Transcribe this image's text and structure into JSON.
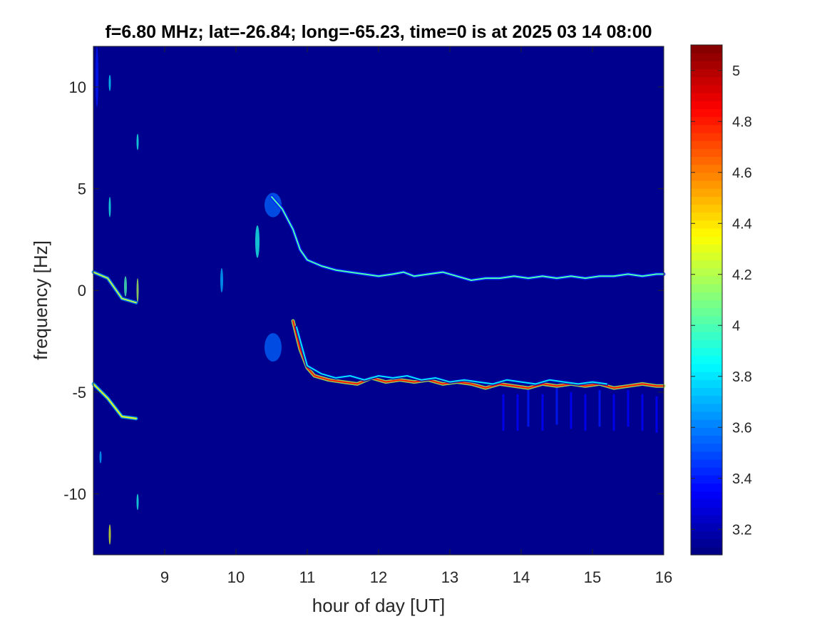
{
  "chart_data": {
    "type": "heatmap",
    "title": "f=6.80 MHz;  lat=-26.84; long=-65.23, time=0 is at 2025 03 14 08:00",
    "xlabel": "hour of day [UT]",
    "ylabel": "frequency [Hz]",
    "xlim": [
      8.0,
      16.0
    ],
    "ylim": [
      -13.0,
      12.0
    ],
    "x_ticks": [
      9,
      10,
      11,
      12,
      13,
      14,
      15,
      16
    ],
    "x_tick_labels": [
      "9",
      "10",
      "11",
      "12",
      "13",
      "14",
      "15",
      "16"
    ],
    "y_ticks": [
      10,
      5,
      0,
      -5,
      -10
    ],
    "y_tick_labels": [
      "10",
      "5",
      "0",
      "-5",
      "-10"
    ],
    "colorbar": {
      "colormap": "jet",
      "range": [
        3.1,
        5.1
      ],
      "ticks": [
        5,
        4.8,
        4.6,
        4.4,
        4.2,
        4,
        3.8,
        3.6,
        3.4,
        3.2
      ],
      "tick_labels": [
        "5",
        "4.8",
        "4.6",
        "4.4",
        "4.2",
        "4",
        "3.8",
        "3.6",
        "3.4",
        "3.2"
      ]
    },
    "background_color": "#00008f",
    "traces": [
      {
        "points": [
          [
            8.0,
            0.9
          ],
          [
            8.2,
            0.6
          ],
          [
            8.4,
            -0.4
          ],
          [
            8.6,
            -0.6
          ]
        ],
        "level": 4.2
      },
      {
        "points": [
          [
            8.0,
            -4.6
          ],
          [
            8.2,
            -5.3
          ],
          [
            8.4,
            -6.2
          ],
          [
            8.6,
            -6.3
          ]
        ],
        "level": 4.3
      },
      {
        "points": [
          [
            10.5,
            4.6
          ],
          [
            10.65,
            4.0
          ],
          [
            10.8,
            3.0
          ],
          [
            10.9,
            2.0
          ],
          [
            11.0,
            1.5
          ],
          [
            11.2,
            1.2
          ],
          [
            11.4,
            1.0
          ],
          [
            11.6,
            0.9
          ],
          [
            11.8,
            0.8
          ],
          [
            12.0,
            0.7
          ],
          [
            12.2,
            0.8
          ],
          [
            12.35,
            0.9
          ],
          [
            12.5,
            0.7
          ],
          [
            12.7,
            0.8
          ],
          [
            12.9,
            0.9
          ],
          [
            13.1,
            0.7
          ],
          [
            13.3,
            0.5
          ],
          [
            13.5,
            0.6
          ],
          [
            13.7,
            0.6
          ],
          [
            13.9,
            0.7
          ],
          [
            14.1,
            0.6
          ],
          [
            14.3,
            0.7
          ],
          [
            14.5,
            0.6
          ],
          [
            14.7,
            0.7
          ],
          [
            14.9,
            0.6
          ],
          [
            15.1,
            0.7
          ],
          [
            15.3,
            0.7
          ],
          [
            15.5,
            0.8
          ],
          [
            15.7,
            0.7
          ],
          [
            15.9,
            0.8
          ],
          [
            16.0,
            0.8
          ]
        ],
        "level": 4.0
      },
      {
        "points": [
          [
            10.8,
            -1.5
          ],
          [
            10.9,
            -2.9
          ],
          [
            11.0,
            -3.8
          ],
          [
            11.1,
            -4.2
          ],
          [
            11.3,
            -4.4
          ],
          [
            11.5,
            -4.5
          ],
          [
            11.7,
            -4.6
          ],
          [
            11.9,
            -4.3
          ],
          [
            12.1,
            -4.5
          ],
          [
            12.3,
            -4.4
          ],
          [
            12.5,
            -4.5
          ],
          [
            12.7,
            -4.4
          ],
          [
            12.9,
            -4.6
          ],
          [
            13.1,
            -4.5
          ],
          [
            13.3,
            -4.6
          ],
          [
            13.5,
            -4.8
          ],
          [
            13.7,
            -4.6
          ],
          [
            13.9,
            -4.7
          ],
          [
            14.1,
            -4.8
          ],
          [
            14.3,
            -4.6
          ],
          [
            14.5,
            -4.7
          ],
          [
            14.7,
            -4.6
          ],
          [
            14.9,
            -4.7
          ],
          [
            15.1,
            -4.6
          ],
          [
            15.3,
            -4.8
          ],
          [
            15.5,
            -4.7
          ],
          [
            15.7,
            -4.6
          ],
          [
            15.9,
            -4.7
          ],
          [
            16.0,
            -4.7
          ]
        ],
        "level": 4.8
      },
      {
        "points": [
          [
            10.85,
            -1.8
          ],
          [
            11.0,
            -3.7
          ],
          [
            11.2,
            -4.1
          ],
          [
            11.4,
            -4.3
          ],
          [
            11.6,
            -4.2
          ],
          [
            11.8,
            -4.4
          ],
          [
            12.0,
            -4.2
          ],
          [
            12.2,
            -4.3
          ],
          [
            12.4,
            -4.2
          ],
          [
            12.6,
            -4.4
          ],
          [
            12.8,
            -4.3
          ],
          [
            13.0,
            -4.5
          ],
          [
            13.2,
            -4.4
          ],
          [
            13.4,
            -4.5
          ],
          [
            13.6,
            -4.6
          ],
          [
            13.8,
            -4.4
          ],
          [
            14.0,
            -4.5
          ],
          [
            14.2,
            -4.6
          ],
          [
            14.4,
            -4.4
          ],
          [
            14.6,
            -4.5
          ],
          [
            14.8,
            -4.6
          ],
          [
            15.0,
            -4.5
          ],
          [
            15.2,
            -4.6
          ]
        ],
        "level": 3.8
      }
    ],
    "blobs": [
      {
        "x": 10.52,
        "y": 4.2,
        "sx": 0.12,
        "sy": 0.6,
        "level": 3.55
      },
      {
        "x": 10.52,
        "y": -2.8,
        "sx": 0.12,
        "sy": 0.7,
        "level": 3.55
      },
      {
        "x": 10.3,
        "y": 2.4,
        "sx": 0.03,
        "sy": 0.8,
        "level": 3.9
      },
      {
        "x": 9.8,
        "y": 0.5,
        "sx": 0.02,
        "sy": 0.6,
        "level": 3.7
      },
      {
        "x": 8.05,
        "y": 10.5,
        "sx": 0.02,
        "sy": 1.5,
        "level": 3.4
      },
      {
        "x": 8.23,
        "y": 10.2,
        "sx": 0.01,
        "sy": 0.4,
        "level": 3.8
      },
      {
        "x": 8.23,
        "y": 4.1,
        "sx": 0.01,
        "sy": 0.5,
        "level": 3.9
      },
      {
        "x": 8.23,
        "y": -12.0,
        "sx": 0.01,
        "sy": 0.5,
        "level": 4.3
      },
      {
        "x": 8.62,
        "y": 7.3,
        "sx": 0.01,
        "sy": 0.4,
        "level": 3.9
      },
      {
        "x": 8.62,
        "y": 0.0,
        "sx": 0.01,
        "sy": 0.6,
        "level": 4.2
      },
      {
        "x": 8.62,
        "y": -10.4,
        "sx": 0.01,
        "sy": 0.4,
        "level": 3.9
      },
      {
        "x": 8.1,
        "y": -8.2,
        "sx": 0.01,
        "sy": 0.3,
        "level": 3.7
      },
      {
        "x": 8.45,
        "y": 0.2,
        "sx": 0.02,
        "sy": 0.5,
        "level": 4.0
      }
    ],
    "streaks": [
      {
        "x": 13.75,
        "y": -6.0,
        "level": 3.35
      },
      {
        "x": 13.95,
        "y": -6.0,
        "level": 3.35
      },
      {
        "x": 14.1,
        "y": -5.8,
        "level": 3.4
      },
      {
        "x": 14.3,
        "y": -6.0,
        "level": 3.35
      },
      {
        "x": 14.5,
        "y": -5.7,
        "level": 3.4
      },
      {
        "x": 14.7,
        "y": -5.9,
        "level": 3.35
      },
      {
        "x": 14.9,
        "y": -6.0,
        "level": 3.35
      },
      {
        "x": 15.1,
        "y": -5.8,
        "level": 3.4
      },
      {
        "x": 15.3,
        "y": -6.0,
        "level": 3.35
      },
      {
        "x": 15.5,
        "y": -5.8,
        "level": 3.35
      },
      {
        "x": 15.7,
        "y": -6.0,
        "level": 3.35
      },
      {
        "x": 15.9,
        "y": -6.1,
        "level": 3.35
      }
    ]
  }
}
